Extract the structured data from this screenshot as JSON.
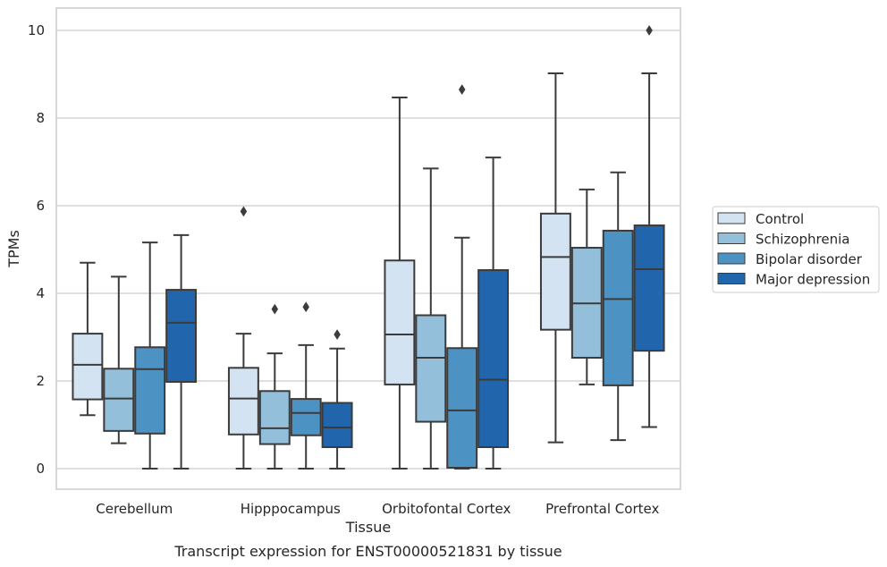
{
  "chart_data": {
    "type": "box",
    "title": "Transcript expression for ENST00000521831 by tissue",
    "xlabel": "Tissue",
    "ylabel": "TPMs",
    "ylim": [
      -0.48,
      10.5
    ],
    "yticks": [
      0,
      2,
      4,
      6,
      8,
      10
    ],
    "grid": "horizontal",
    "legend_position": "right",
    "categories": [
      "Cerebellum",
      "Hipppocampus",
      "Orbitofontal Cortex",
      "Prefrontal Cortex"
    ],
    "series": [
      {
        "name": "Control",
        "color": "#d3e3f1",
        "boxes": [
          {
            "whislo": 1.22,
            "q1": 1.58,
            "med": 2.37,
            "q3": 3.08,
            "whishi": 4.7,
            "fliers": []
          },
          {
            "whislo": 0.0,
            "q1": 0.78,
            "med": 1.6,
            "q3": 2.3,
            "whishi": 3.08,
            "fliers": [
              5.87
            ]
          },
          {
            "whislo": 0.0,
            "q1": 1.92,
            "med": 3.06,
            "q3": 4.75,
            "whishi": 8.47,
            "fliers": []
          },
          {
            "whislo": 0.6,
            "q1": 3.17,
            "med": 4.83,
            "q3": 5.82,
            "whishi": 9.02,
            "fliers": []
          }
        ]
      },
      {
        "name": "Schizophrenia",
        "color": "#94bfda",
        "boxes": [
          {
            "whislo": 0.58,
            "q1": 0.86,
            "med": 1.6,
            "q3": 2.28,
            "whishi": 4.38,
            "fliers": []
          },
          {
            "whislo": 0.0,
            "q1": 0.56,
            "med": 0.92,
            "q3": 1.77,
            "whishi": 2.63,
            "fliers": [
              3.64
            ]
          },
          {
            "whislo": 0.0,
            "q1": 1.07,
            "med": 2.53,
            "q3": 3.5,
            "whishi": 6.85,
            "fliers": []
          },
          {
            "whislo": 1.92,
            "q1": 2.53,
            "med": 3.77,
            "q3": 5.04,
            "whishi": 6.37,
            "fliers": []
          }
        ]
      },
      {
        "name": "Bipolar disorder",
        "color": "#4c92c3",
        "boxes": [
          {
            "whislo": 0.0,
            "q1": 0.8,
            "med": 2.27,
            "q3": 2.77,
            "whishi": 5.16,
            "fliers": []
          },
          {
            "whislo": 0.0,
            "q1": 0.76,
            "med": 1.27,
            "q3": 1.59,
            "whishi": 2.82,
            "fliers": [
              3.69
            ]
          },
          {
            "whislo": 0.0,
            "q1": 0.02,
            "med": 1.33,
            "q3": 2.75,
            "whishi": 5.27,
            "fliers": [
              8.65
            ]
          },
          {
            "whislo": 0.65,
            "q1": 1.9,
            "med": 3.87,
            "q3": 5.43,
            "whishi": 6.76,
            "fliers": []
          }
        ]
      },
      {
        "name": "Major depression",
        "color": "#2166ac",
        "boxes": [
          {
            "whislo": 0.0,
            "q1": 1.98,
            "med": 3.33,
            "q3": 4.08,
            "whishi": 5.33,
            "fliers": []
          },
          {
            "whislo": 0.0,
            "q1": 0.49,
            "med": 0.94,
            "q3": 1.5,
            "whishi": 2.74,
            "fliers": [
              3.06
            ]
          },
          {
            "whislo": 0.0,
            "q1": 0.49,
            "med": 2.03,
            "q3": 4.53,
            "whishi": 7.1,
            "fliers": []
          },
          {
            "whislo": 0.95,
            "q1": 2.69,
            "med": 4.55,
            "q3": 5.55,
            "whishi": 9.02,
            "fliers": [
              10.0
            ]
          }
        ]
      }
    ]
  }
}
